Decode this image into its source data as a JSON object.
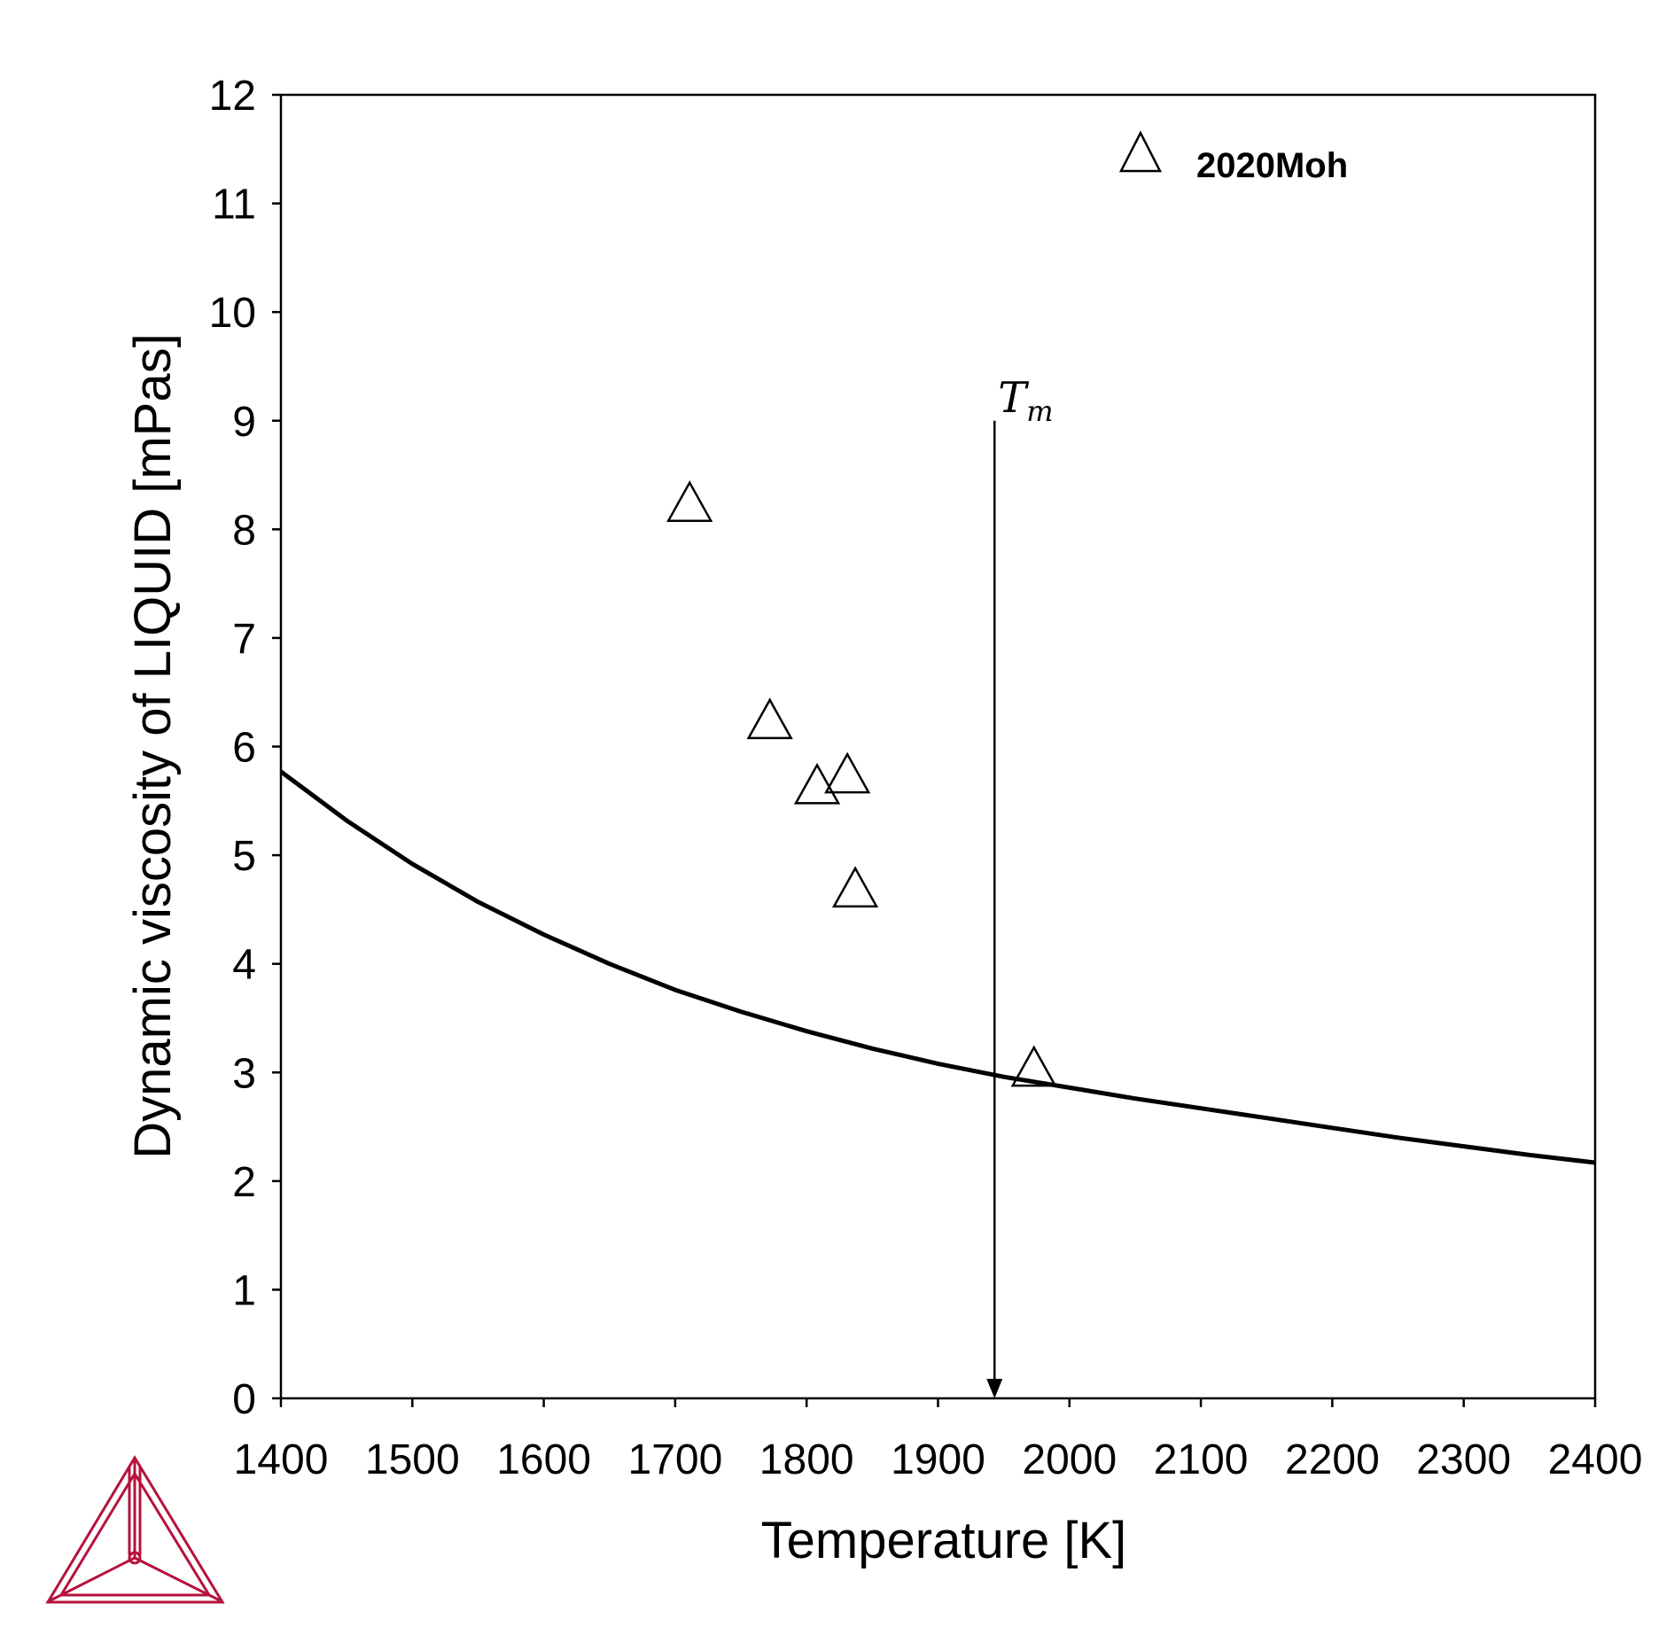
{
  "chart_data": {
    "type": "scatter",
    "xlabel": "Temperature [K]",
    "ylabel": "Dynamic viscosity of LIQUID [mPas]",
    "xlim": [
      1400,
      2400
    ],
    "ylim": [
      0,
      12
    ],
    "x_ticks": [
      1400,
      1500,
      1600,
      1700,
      1800,
      1900,
      2000,
      2100,
      2200,
      2300,
      2400
    ],
    "y_ticks": [
      0,
      1,
      2,
      3,
      4,
      5,
      6,
      7,
      8,
      9,
      10,
      11,
      12
    ],
    "grid": false,
    "legend_position": "top-right",
    "series": [
      {
        "name": "2020Moh",
        "kind": "scatter",
        "marker": "open-triangle",
        "x": [
          1711,
          1772,
          1808,
          1831,
          1837,
          1973
        ],
        "y": [
          8.25,
          6.25,
          5.65,
          5.75,
          4.7,
          3.05
        ]
      },
      {
        "kind": "line",
        "x": [
          1400,
          1450,
          1500,
          1550,
          1600,
          1650,
          1700,
          1750,
          1800,
          1850,
          1900,
          1950,
          2000,
          2050,
          2100,
          2150,
          2200,
          2250,
          2300,
          2350,
          2400
        ],
        "y": [
          5.77,
          5.32,
          4.92,
          4.57,
          4.27,
          4.0,
          3.76,
          3.56,
          3.38,
          3.22,
          3.08,
          2.96,
          2.86,
          2.76,
          2.67,
          2.58,
          2.49,
          2.4,
          2.32,
          2.24,
          2.17
        ]
      }
    ],
    "annotations": [
      {
        "label_main": "T",
        "label_sub": "m",
        "x": 1943,
        "y_top": 9.0,
        "y_bottom": 0,
        "style": "vertical-arrow"
      }
    ]
  },
  "logo": {
    "name": "thermo-calc-logo-icon",
    "color": "#b5123c"
  }
}
